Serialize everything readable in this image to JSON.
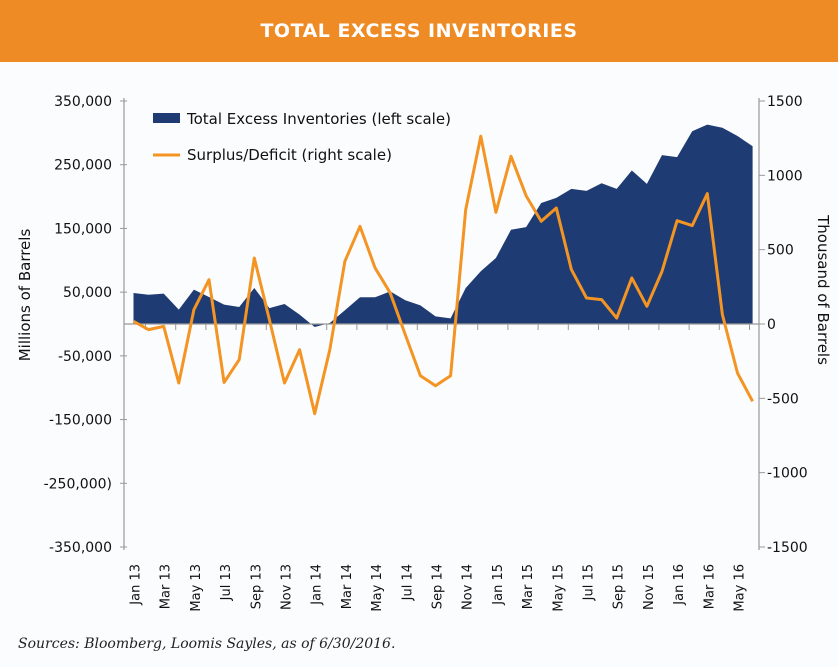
{
  "header": {
    "title": "TOTAL EXCESS INVENTORIES"
  },
  "footer": {
    "source": "Sources: Bloomberg, Loomis Sayles, as of 6/30/2016."
  },
  "chart_data": {
    "type": "area+line",
    "title": "TOTAL EXCESS INVENTORIES",
    "ylabel": "Millions of Barrels",
    "y2label": "Thousand of Barrels",
    "ylim": [
      -350000,
      350000
    ],
    "y2lim": [
      -1500,
      1500
    ],
    "yticks": [
      "350,000",
      "250,000",
      "150,000",
      "50,000",
      "-50,000",
      "-150,000",
      "-250,000)",
      "-350,000"
    ],
    "ytick_values": [
      350000,
      250000,
      150000,
      50000,
      -50000,
      -150000,
      -250000,
      -350000
    ],
    "y2ticks": [
      "1500",
      "1000",
      "500",
      "0",
      "-500",
      "-1000",
      "-1500"
    ],
    "y2tick_values": [
      1500,
      1000,
      500,
      0,
      -500,
      -1000,
      -1500
    ],
    "xticks": [
      "Jan 13",
      "Mar 13",
      "May 13",
      "Jul 13",
      "Sep 13",
      "Nov 13",
      "Jan 14",
      "Mar 14",
      "May 14",
      "Jul 14",
      "Sep 14",
      "Nov 14",
      "Jan 15",
      "Mar 15",
      "May 15",
      "Jul 15",
      "Sep 15",
      "Nov 15",
      "Jan 16",
      "Mar 16",
      "May 16"
    ],
    "x_start": "Jan 2013",
    "x_end": "Jun 2016",
    "x_step": "monthly",
    "legend_position": "top-left",
    "grid": false,
    "colors": {
      "area": "#1f3b73",
      "line": "#f39423"
    },
    "series": [
      {
        "name": "Total Excess Inventories (left scale)",
        "type": "area",
        "axis": "left",
        "values": [
          48700,
          46000,
          47600,
          22500,
          53900,
          42400,
          30400,
          26700,
          56500,
          25000,
          31400,
          14700,
          -4700,
          1600,
          21500,
          41900,
          41900,
          51300,
          37200,
          29300,
          12000,
          8900,
          56500,
          82700,
          103600,
          148000,
          152000,
          190000,
          198000,
          212000,
          209000,
          221000,
          212000,
          241000,
          220000,
          265000,
          262000,
          302500,
          313000,
          308000,
          295000,
          279000
        ]
      },
      {
        "name": "Surplus/Deficit (right scale)",
        "type": "line",
        "axis": "right",
        "values": [
          18,
          -38,
          -16,
          -397,
          96,
          298,
          -393,
          -240,
          444,
          29,
          -397,
          -173,
          -603,
          -173,
          422,
          657,
          377,
          209,
          -72,
          -348,
          -415,
          -348,
          769,
          1263,
          751,
          1128,
          863,
          691,
          780,
          366,
          175,
          164,
          40,
          310,
          119,
          354,
          695,
          662,
          877,
          63,
          -330,
          -520
        ]
      }
    ]
  }
}
